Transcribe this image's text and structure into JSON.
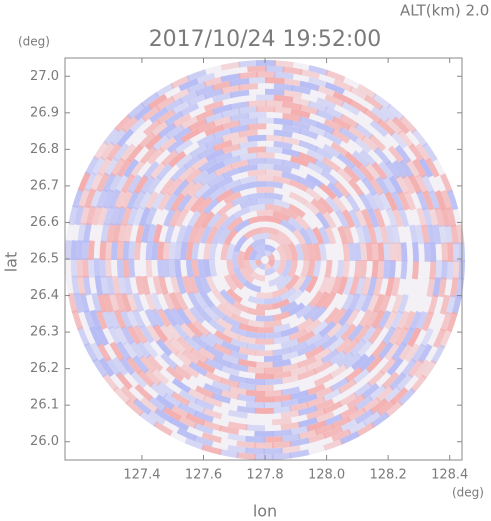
{
  "chart_data": {
    "type": "ppi",
    "title": "2017/10/24 19:52:00",
    "annotation": "ALT(km) 2.0",
    "xlabel": "lon",
    "ylabel": "lat",
    "x_unit": "(deg)",
    "y_unit": "(deg)",
    "xlim": [
      127.15,
      128.44
    ],
    "ylim": [
      25.95,
      27.05
    ],
    "xticks": [
      {
        "value": 127.4,
        "label": "127.4"
      },
      {
        "value": 127.6,
        "label": "127.6"
      },
      {
        "value": 127.8,
        "label": "127.8"
      },
      {
        "value": 128.0,
        "label": "128.0"
      },
      {
        "value": 128.2,
        "label": "128.2"
      },
      {
        "value": 128.4,
        "label": "128.4"
      }
    ],
    "yticks": [
      {
        "value": 26.0,
        "label": "26.0"
      },
      {
        "value": 26.1,
        "label": "26.1"
      },
      {
        "value": 26.2,
        "label": "26.2"
      },
      {
        "value": 26.3,
        "label": "26.3"
      },
      {
        "value": 26.4,
        "label": "26.4"
      },
      {
        "value": 26.5,
        "label": "26.5"
      },
      {
        "value": 26.6,
        "label": "26.6"
      },
      {
        "value": 26.7,
        "label": "26.7"
      },
      {
        "value": 26.8,
        "label": "26.8"
      },
      {
        "value": 26.9,
        "label": "26.9"
      },
      {
        "value": 27.0,
        "label": "27.0"
      }
    ],
    "colors": [
      "#f4a9a9",
      "#b3b9f4"
    ]
  }
}
